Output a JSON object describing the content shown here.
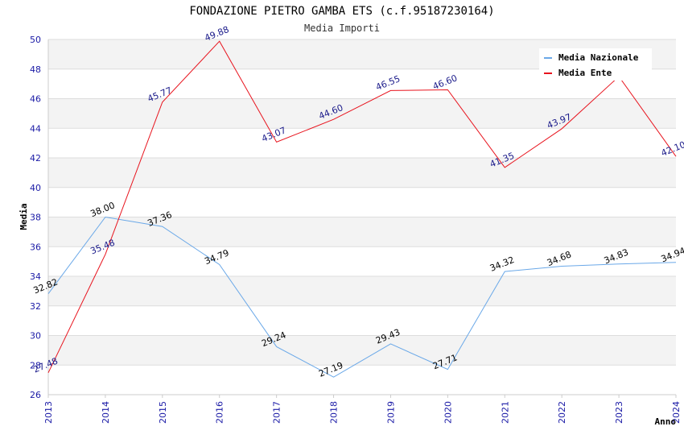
{
  "chart_data": {
    "type": "line",
    "title": "FONDAZIONE PIETRO GAMBA ETS (c.f.95187230164)",
    "subtitle": "Media Importi",
    "xlabel": "Anno",
    "ylabel": "Media",
    "ylim": [
      26,
      50
    ],
    "y_ticks": [
      26,
      28,
      30,
      32,
      34,
      36,
      38,
      40,
      42,
      44,
      46,
      48,
      50
    ],
    "x": [
      "2013",
      "2014",
      "2015",
      "2016",
      "2017",
      "2018",
      "2019",
      "2020",
      "2021",
      "2022",
      "2023",
      "2024"
    ],
    "grid": true,
    "legend_position": "top-right",
    "series": [
      {
        "name": "Media Nazionale",
        "color": "#6aa8e8",
        "values": [
          32.82,
          38.0,
          37.36,
          34.79,
          29.24,
          27.19,
          29.43,
          27.71,
          34.32,
          34.68,
          34.83,
          34.94
        ],
        "labels": [
          "32.82",
          "38.00",
          "37.36",
          "34.79",
          "29.24",
          "27.19",
          "29.43",
          "27.71",
          "34.32",
          "34.68",
          "34.83",
          "34.94"
        ]
      },
      {
        "name": "Media Ente",
        "color": "#e8141e",
        "values": [
          27.48,
          35.48,
          45.77,
          49.88,
          43.07,
          44.6,
          46.55,
          46.6,
          41.35,
          43.97,
          47.5,
          42.1
        ],
        "labels": [
          "27.48",
          "35.48",
          "45.77",
          "49.88",
          "43.07",
          "44.60",
          "46.55",
          "46.60",
          "41.35",
          "43.97",
          "",
          "42.10"
        ]
      }
    ]
  }
}
